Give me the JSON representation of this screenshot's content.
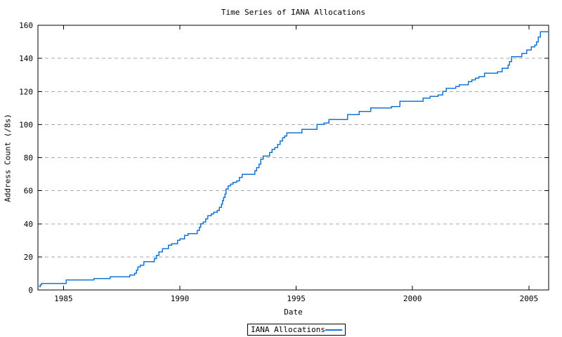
{
  "chart_data": {
    "type": "line",
    "line_style": "step-after",
    "title": "Time Series of IANA Allocations",
    "xlabel": "Date",
    "ylabel": "Address Count (/8s)",
    "xlim": [
      1983.9,
      2005.85
    ],
    "ylim": [
      0,
      160
    ],
    "x_ticks": [
      1985,
      1990,
      1995,
      2000,
      2005
    ],
    "y_ticks": [
      0,
      20,
      40,
      60,
      80,
      100,
      120,
      140,
      160
    ],
    "grid": "dashed-horizontal",
    "tick_mirror": true,
    "line_color": "#1574d4",
    "grid_color": "#a9a9a9",
    "axis_color": "#000000",
    "legend": {
      "label": "IANA Allocations",
      "position": "bottom-center-outside"
    },
    "series": [
      {
        "name": "IANA Allocations",
        "points": [
          [
            1983.95,
            2
          ],
          [
            1984.0,
            3
          ],
          [
            1984.06,
            4
          ],
          [
            1985.12,
            6
          ],
          [
            1986.3,
            7
          ],
          [
            1987.0,
            8
          ],
          [
            1987.85,
            9
          ],
          [
            1988.05,
            10
          ],
          [
            1988.13,
            12
          ],
          [
            1988.2,
            14
          ],
          [
            1988.3,
            15
          ],
          [
            1988.45,
            17
          ],
          [
            1988.9,
            19
          ],
          [
            1989.0,
            21
          ],
          [
            1989.1,
            23
          ],
          [
            1989.25,
            25
          ],
          [
            1989.5,
            27
          ],
          [
            1989.65,
            28
          ],
          [
            1989.9,
            30
          ],
          [
            1990.0,
            31
          ],
          [
            1990.2,
            33
          ],
          [
            1990.35,
            34
          ],
          [
            1990.75,
            36
          ],
          [
            1990.83,
            38
          ],
          [
            1990.9,
            40
          ],
          [
            1991.0,
            41
          ],
          [
            1991.1,
            43
          ],
          [
            1991.2,
            45
          ],
          [
            1991.35,
            46
          ],
          [
            1991.45,
            47
          ],
          [
            1991.6,
            48
          ],
          [
            1991.7,
            50
          ],
          [
            1991.78,
            52
          ],
          [
            1991.83,
            54
          ],
          [
            1991.88,
            56
          ],
          [
            1991.93,
            58
          ],
          [
            1991.98,
            61
          ],
          [
            1992.08,
            63
          ],
          [
            1992.18,
            64
          ],
          [
            1992.28,
            65
          ],
          [
            1992.43,
            66
          ],
          [
            1992.55,
            68
          ],
          [
            1992.67,
            70
          ],
          [
            1993.22,
            72
          ],
          [
            1993.3,
            74
          ],
          [
            1993.4,
            76
          ],
          [
            1993.48,
            79
          ],
          [
            1993.58,
            81
          ],
          [
            1993.85,
            83
          ],
          [
            1993.96,
            85
          ],
          [
            1994.08,
            86
          ],
          [
            1994.2,
            88
          ],
          [
            1994.3,
            90
          ],
          [
            1994.42,
            92
          ],
          [
            1994.5,
            93
          ],
          [
            1994.6,
            95
          ],
          [
            1995.25,
            97
          ],
          [
            1995.9,
            100
          ],
          [
            1996.2,
            101
          ],
          [
            1996.4,
            103
          ],
          [
            1997.2,
            106
          ],
          [
            1997.7,
            108
          ],
          [
            1998.2,
            110
          ],
          [
            1999.1,
            111
          ],
          [
            1999.45,
            114
          ],
          [
            2000.45,
            116
          ],
          [
            2000.75,
            117
          ],
          [
            2001.1,
            118
          ],
          [
            2001.3,
            120
          ],
          [
            2001.45,
            122
          ],
          [
            2001.85,
            123
          ],
          [
            2002.0,
            124
          ],
          [
            2002.4,
            126
          ],
          [
            2002.55,
            127
          ],
          [
            2002.7,
            128
          ],
          [
            2002.85,
            129
          ],
          [
            2003.1,
            131
          ],
          [
            2003.65,
            132
          ],
          [
            2003.85,
            134
          ],
          [
            2004.1,
            136
          ],
          [
            2004.17,
            138
          ],
          [
            2004.25,
            141
          ],
          [
            2004.7,
            143
          ],
          [
            2004.9,
            145
          ],
          [
            2005.1,
            147
          ],
          [
            2005.25,
            148
          ],
          [
            2005.33,
            150
          ],
          [
            2005.4,
            153
          ],
          [
            2005.5,
            156
          ]
        ]
      }
    ]
  }
}
